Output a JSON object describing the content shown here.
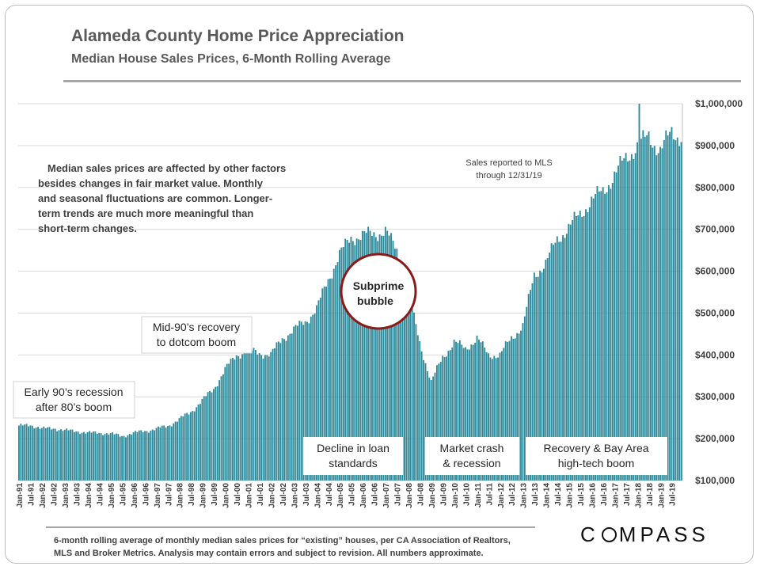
{
  "title": "Alameda County Home Price Appreciation",
  "subtitle": "Median House Sales Prices, 6-Month Rolling Average",
  "footnote_line1": "6-month rolling average of monthly median sales prices for “existing” houses, per CA Association of Realtors,",
  "footnote_line2": "MLS and Broker Metrics.  Analysis may contain errors and subject to revision. All numbers approximate.",
  "logo": {
    "pre": "C",
    "post": "MPASS"
  },
  "notes": {
    "disclaimer": [
      "Median sales prices are affected by other factors",
      "besides changes in fair market value. Monthly",
      "and seasonal fluctuations are common. Longer-",
      "term trends are much more meaningful than",
      "short-term changes."
    ],
    "sales_reported": [
      "Sales reported to MLS",
      "through 12/31/19"
    ]
  },
  "annotations": {
    "early90s": [
      "Early 90’s recession",
      "after 80’s boom"
    ],
    "mid90s": [
      "Mid-90’s recovery",
      "to dotcom boom"
    ],
    "subprime": [
      "Subprime",
      "bubble"
    ],
    "decline": [
      "Decline in loan",
      "standards"
    ],
    "crash": [
      "Market crash",
      "& recession"
    ],
    "recovery": [
      "Recovery & Bay Area",
      "high-tech boom"
    ]
  },
  "colors": {
    "bar": "#2e8a9a",
    "bar_edge": "#1f6a77",
    "circle_border": "#8b1a1a",
    "grid": "#d9d9d9",
    "text": "#404040"
  },
  "chart_data": {
    "type": "bar",
    "ylim": [
      100000,
      1000000
    ],
    "y_ticks": [
      "$100,000",
      "$200,000",
      "$300,000",
      "$400,000",
      "$500,000",
      "$600,000",
      "$700,000",
      "$800,000",
      "$900,000",
      "$1,000,000"
    ],
    "y_tick_values": [
      100000,
      200000,
      300000,
      400000,
      500000,
      600000,
      700000,
      800000,
      900000,
      1000000
    ],
    "x_tick_labels": [
      "Jan-91",
      "Jul-91",
      "Jan-92",
      "Jul-92",
      "Jan-93",
      "Jul-93",
      "Jan-94",
      "Jul-94",
      "Jan-95",
      "Jul-95",
      "Jan-96",
      "Jul-96",
      "Jan-97",
      "Jul-97",
      "Jan-98",
      "Jul-98",
      "Jan-99",
      "Jul-99",
      "Jan-00",
      "Jul-00",
      "Jan-01",
      "Jul-01",
      "Jan-02",
      "Jul-02",
      "Jan-03",
      "Jul-03",
      "Jan-04",
      "Jul-04",
      "Jan-05",
      "Jul-05",
      "Jan-06",
      "Jul-06",
      "Jan-07",
      "Jul-07",
      "Jan-08",
      "Jul-08",
      "Jan-09",
      "Jul-09",
      "Jan-10",
      "Jul-10",
      "Jan-11",
      "Jul-11",
      "Jan-12",
      "Jul-12",
      "Jan-13",
      "Jul-13",
      "Jan-14",
      "Jul-14",
      "Jan-15",
      "Jul-15",
      "Jan-16",
      "Jul-16",
      "Jan-17",
      "Jul-17",
      "Jan-18",
      "Jul-18",
      "Jan-19",
      "Jul-19"
    ],
    "semiannual_values": [
      228000,
      235000,
      222000,
      227000,
      218000,
      220000,
      212000,
      216000,
      210000,
      208000,
      212000,
      220000,
      222000,
      232000,
      245000,
      265000,
      290000,
      320000,
      365000,
      400000,
      410000,
      405000,
      400000,
      440000,
      460000,
      480000,
      510000,
      580000,
      640000,
      680000,
      685000,
      690000,
      695000,
      650000,
      545000,
      430000,
      335000,
      395000,
      430000,
      415000,
      440000,
      400000,
      400000,
      440000,
      470000,
      590000,
      620000,
      675000,
      705000,
      735000,
      770000,
      790000,
      830000,
      870000,
      900000,
      920000,
      890000,
      930000,
      920000
    ],
    "monthly_count": 348
  }
}
